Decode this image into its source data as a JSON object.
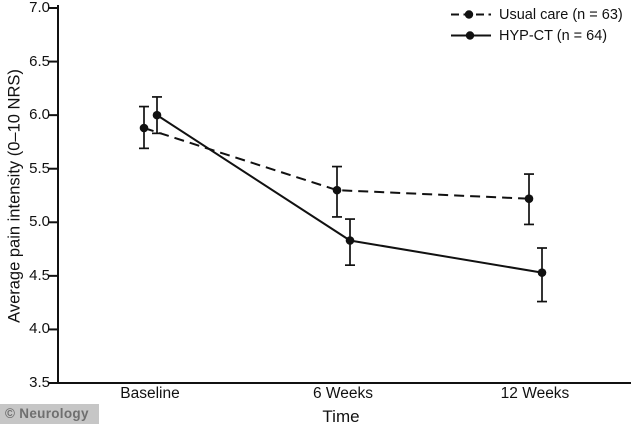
{
  "chart_data": {
    "type": "line",
    "title": "",
    "xlabel": "Time",
    "ylabel": "Average pain intensity (0–10 NRS)",
    "categories": [
      "Baseline",
      "6 Weeks",
      "12 Weeks"
    ],
    "ylim": [
      3.5,
      7.0
    ],
    "yticks": [
      7.0,
      6.5,
      6.0,
      5.5,
      5.0,
      4.5,
      4.0,
      3.5
    ],
    "ytick_labels": [
      "7.0",
      "6.5",
      "6.0",
      "5.5",
      "5.0",
      "4.5",
      "4.0",
      "3.5"
    ],
    "grid": false,
    "legend_position": "top-right",
    "error_bars": true,
    "series": [
      {
        "name": "Usual care",
        "label": "Usual care (n = 63)",
        "n": 63,
        "line_style": "dashed",
        "marker": "filled-circle",
        "color": "#111111",
        "values": [
          5.88,
          5.3,
          5.22
        ],
        "ci_low": [
          5.69,
          5.05,
          4.98
        ],
        "ci_high": [
          6.08,
          5.52,
          5.45
        ]
      },
      {
        "name": "HYP-CT",
        "label": "HYP-CT (n = 64)",
        "n": 64,
        "line_style": "solid",
        "marker": "filled-circle",
        "color": "#111111",
        "values": [
          6.0,
          4.83,
          4.53
        ],
        "ci_low": [
          5.83,
          4.6,
          4.26
        ],
        "ci_high": [
          6.17,
          5.03,
          4.76
        ]
      }
    ]
  },
  "watermark": {
    "text": "© Neurology"
  },
  "colors": {
    "line": "#111111",
    "background": "#ffffff",
    "watermark_bg": "#c6c6c6",
    "watermark_text": "#6f6f6f"
  }
}
